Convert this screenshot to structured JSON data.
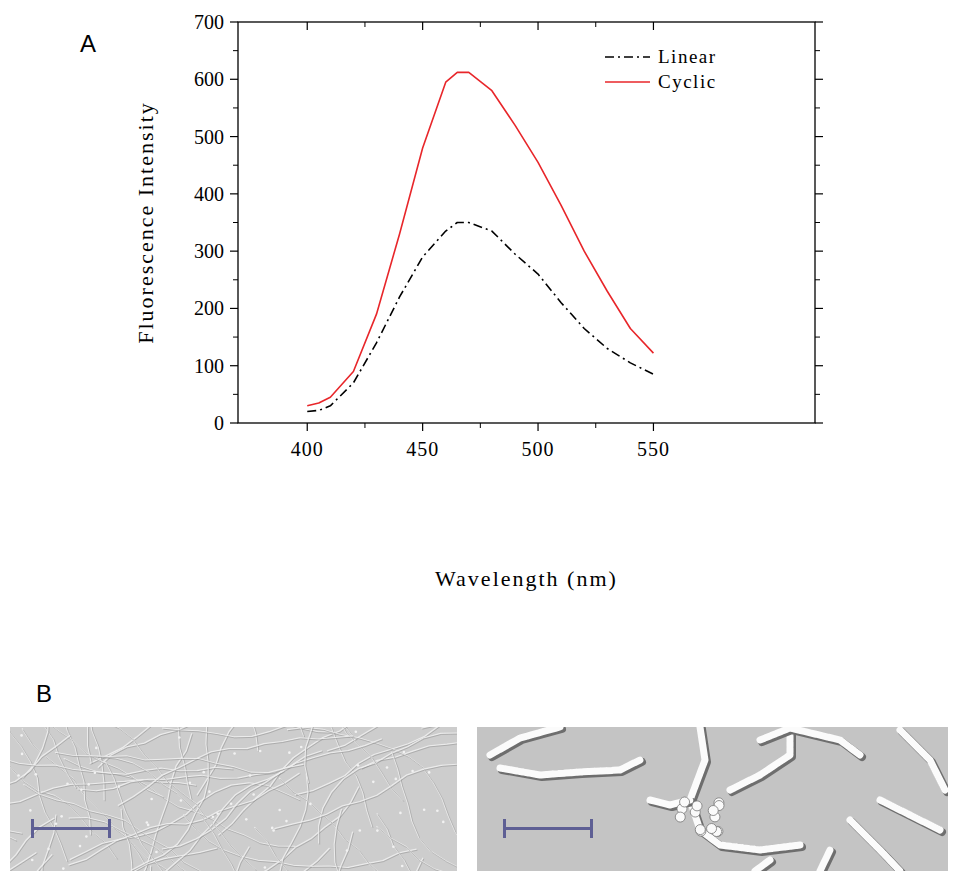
{
  "chart_data": {
    "type": "line",
    "x_label": "Wavelength (nm)",
    "y_label": "Fluorescence Intensity",
    "x": [
      400,
      405,
      410,
      420,
      430,
      440,
      450,
      460,
      465,
      470,
      480,
      490,
      500,
      510,
      520,
      530,
      540,
      550
    ],
    "series": [
      {
        "name": "Linear",
        "color": "#000000",
        "line_style": "dashdot",
        "values": [
          20,
          22,
          30,
          70,
          140,
          220,
          290,
          335,
          350,
          350,
          335,
          295,
          260,
          210,
          165,
          130,
          105,
          85
        ]
      },
      {
        "name": "Cyclic",
        "color": "#e8262a",
        "line_style": "solid",
        "values": [
          30,
          35,
          45,
          90,
          190,
          330,
          480,
          595,
          612,
          612,
          580,
          520,
          455,
          380,
          300,
          230,
          165,
          122
        ]
      }
    ],
    "xlim": [
      370,
      620
    ],
    "xticks": [
      400,
      450,
      500,
      550
    ],
    "ylim": [
      0,
      700
    ],
    "yticks": [
      0,
      100,
      200,
      300,
      400,
      500,
      600,
      700
    ],
    "legend": "upper right",
    "grid": false
  },
  "figure": {
    "panel_labels": [
      "A",
      "B"
    ]
  }
}
